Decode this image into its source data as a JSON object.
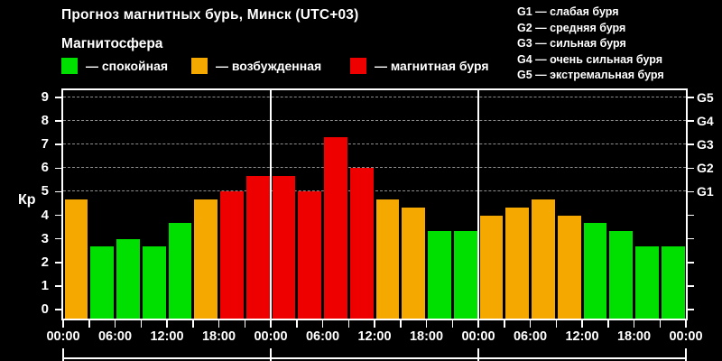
{
  "header": {
    "title": "Прогноз магнитных бурь, Минск (UTC+03)",
    "subtitle": "Магнитосфера"
  },
  "legend": {
    "items": [
      {
        "key": "quiet",
        "label": "— спокойная",
        "color": "#00E000"
      },
      {
        "key": "active",
        "label": "— возбужденная",
        "color": "#F5A800"
      },
      {
        "key": "storm",
        "label": "— магнитная буря",
        "color": "#EE0000"
      }
    ]
  },
  "g_scale": {
    "lines": [
      "G1 — слабая буря",
      "G2 — средняя буря",
      "G3 — сильная буря",
      "G4 — очень сильная буря",
      "G5 — экстремальная буря"
    ]
  },
  "chart_data": {
    "type": "bar",
    "title": "Прогноз магнитных бурь, Минск (UTC+03)",
    "xlabel": "",
    "ylabel": "Кр",
    "ylim": [
      0,
      9
    ],
    "yticks": [
      0,
      1,
      2,
      3,
      4,
      5,
      6,
      7,
      8,
      9
    ],
    "gridlines_at_kp": [
      5,
      6,
      7,
      8,
      9
    ],
    "grid_style": "horizontal dashed, Kp 5–9 only",
    "right_axis": {
      "labels": [
        "G1",
        "G2",
        "G3",
        "G4",
        "G5"
      ],
      "at_kp": [
        5,
        6,
        7,
        8,
        9
      ]
    },
    "x_tick_labels": [
      "00:00",
      "06:00",
      "12:00",
      "18:00",
      "00:00",
      "06:00",
      "12:00",
      "18:00",
      "00:00",
      "06:00",
      "12:00",
      "18:00",
      "00:00"
    ],
    "bar_interval_hours": 3,
    "days": 3,
    "day_boundaries_after_bar": [
      8,
      16
    ],
    "colors": {
      "quiet": "#00E000",
      "active": "#F5A800",
      "storm": "#EE0000"
    },
    "background": "#000000",
    "bars": [
      {
        "kp": 4.67,
        "level": "active"
      },
      {
        "kp": 2.67,
        "level": "quiet"
      },
      {
        "kp": 3.0,
        "level": "quiet"
      },
      {
        "kp": 2.67,
        "level": "quiet"
      },
      {
        "kp": 3.67,
        "level": "quiet"
      },
      {
        "kp": 4.67,
        "level": "active"
      },
      {
        "kp": 5.0,
        "level": "storm"
      },
      {
        "kp": 5.67,
        "level": "storm"
      },
      {
        "kp": 5.67,
        "level": "storm"
      },
      {
        "kp": 5.0,
        "level": "storm"
      },
      {
        "kp": 7.33,
        "level": "storm"
      },
      {
        "kp": 6.0,
        "level": "storm"
      },
      {
        "kp": 4.67,
        "level": "active"
      },
      {
        "kp": 4.33,
        "level": "active"
      },
      {
        "kp": 3.33,
        "level": "quiet"
      },
      {
        "kp": 3.33,
        "level": "quiet"
      },
      {
        "kp": 4.0,
        "level": "active"
      },
      {
        "kp": 4.33,
        "level": "active"
      },
      {
        "kp": 4.67,
        "level": "active"
      },
      {
        "kp": 4.0,
        "level": "active"
      },
      {
        "kp": 3.67,
        "level": "quiet"
      },
      {
        "kp": 3.33,
        "level": "quiet"
      },
      {
        "kp": 2.67,
        "level": "quiet"
      },
      {
        "kp": 2.67,
        "level": "quiet"
      }
    ]
  }
}
